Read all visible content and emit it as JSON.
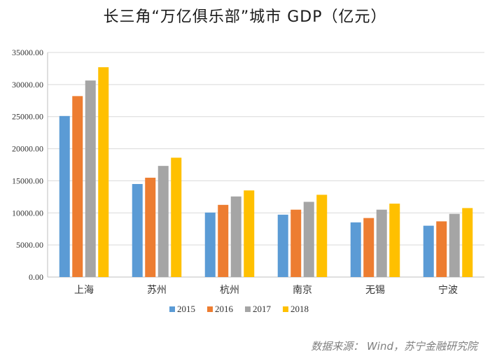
{
  "chart_data": {
    "type": "bar",
    "title": "长三角“万亿俱乐部”城市 GDP（亿元）",
    "categories": [
      "上海",
      "苏州",
      "杭州",
      "南京",
      "无锡",
      "宁波"
    ],
    "series": [
      {
        "name": "2015",
        "color": "#5b9bd5",
        "values": [
          25100,
          14500,
          10050,
          9720,
          8520,
          8000
        ]
      },
      {
        "name": "2016",
        "color": "#ed7d31",
        "values": [
          28200,
          15480,
          11250,
          10500,
          9200,
          8680
        ]
      },
      {
        "name": "2017",
        "color": "#a5a5a5",
        "values": [
          30630,
          17320,
          12560,
          11720,
          10500,
          9850
        ]
      },
      {
        "name": "2018",
        "color": "#ffc000",
        "values": [
          32700,
          18600,
          13500,
          12820,
          11440,
          10750
        ]
      }
    ],
    "ylim": [
      0,
      35000
    ],
    "yticks": [
      "0.00",
      "5000.00",
      "10000.00",
      "15000.00",
      "20000.00",
      "25000.00",
      "30000.00",
      "35000.00"
    ],
    "xlabel": "",
    "ylabel": "",
    "grid": true,
    "legend_position": "bottom"
  },
  "source_note": "数据来源： Wind，苏宁金融研究院"
}
